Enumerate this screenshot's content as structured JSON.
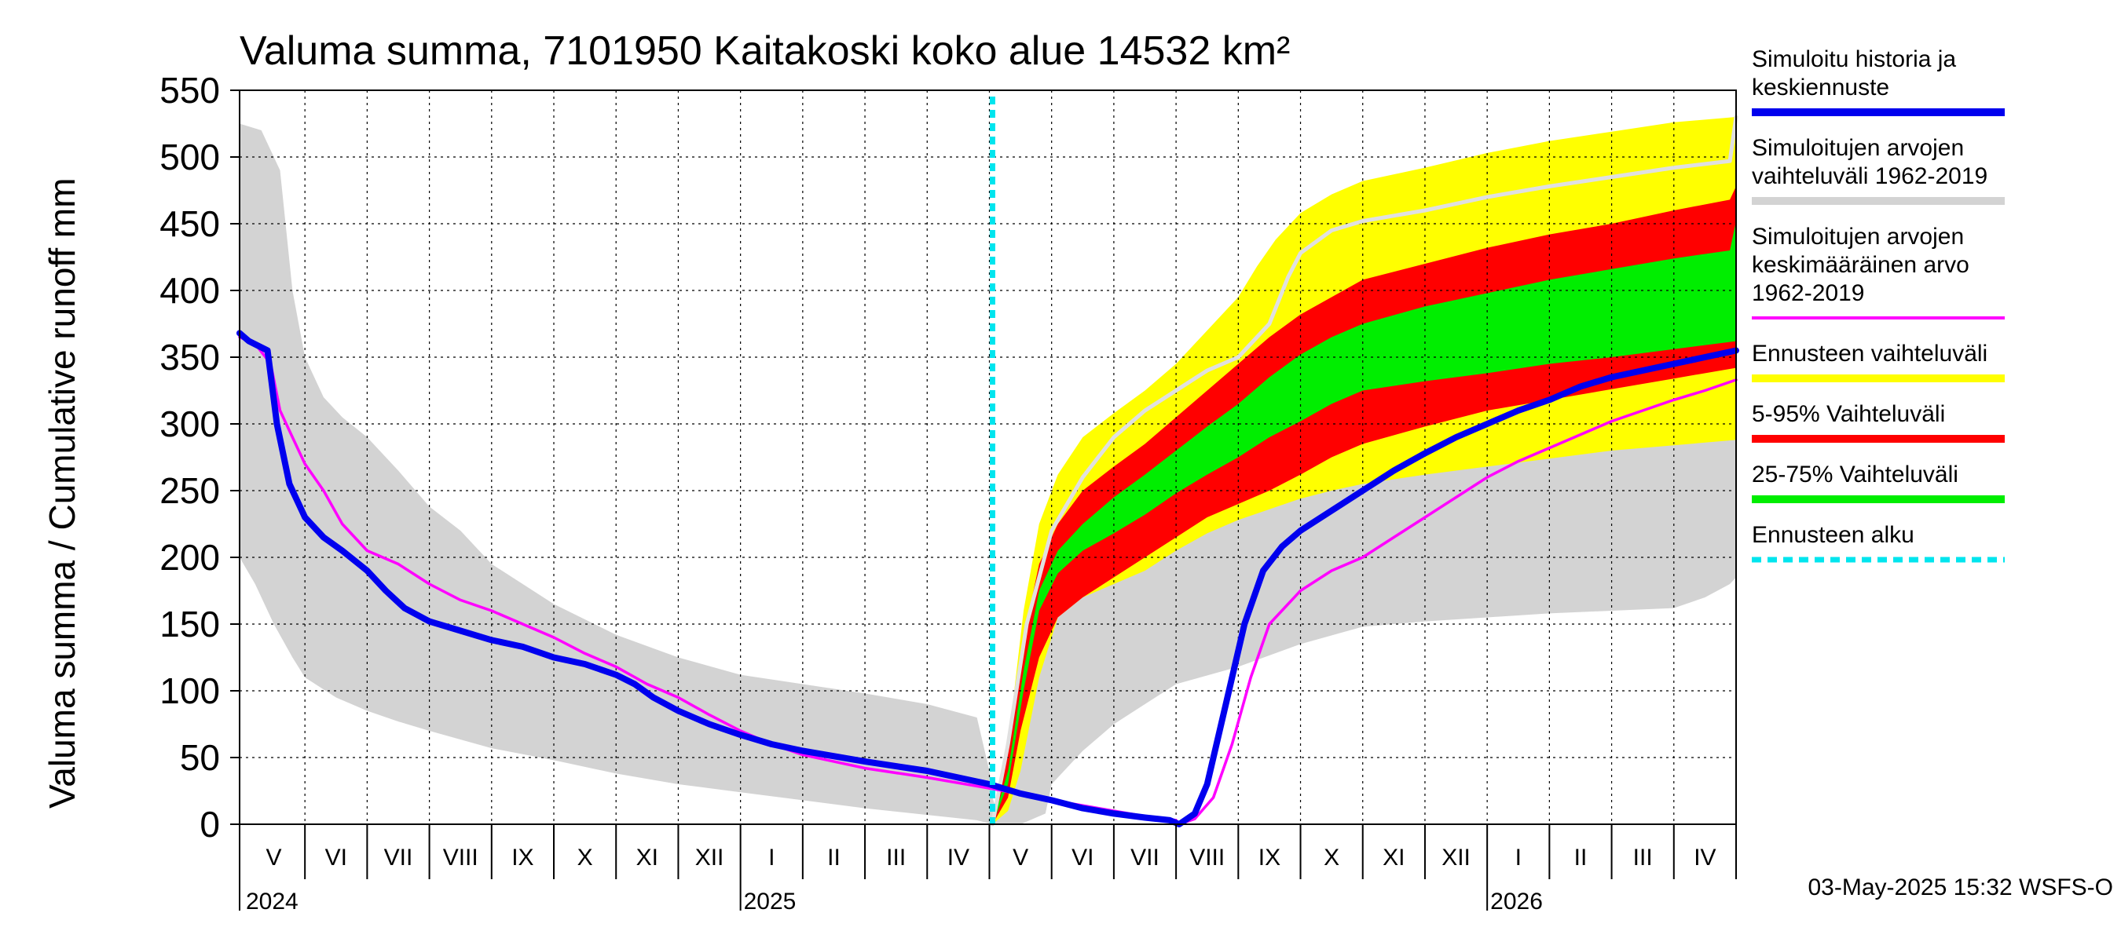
{
  "chart_data": {
    "type": "area",
    "title": "Valuma summa, 7101950 Kaitakoski koko alue 14532 km²",
    "ylabel": "Valuma summa / Cumulative runoff     mm",
    "ylim": [
      0,
      550
    ],
    "yticks": [
      0,
      50,
      100,
      150,
      200,
      250,
      300,
      350,
      400,
      450,
      500,
      550
    ],
    "x_unit": "months since 2024-04-01",
    "xlim": [
      0.95,
      25.0
    ],
    "month_labels": [
      "V",
      "VI",
      "VII",
      "VIII",
      "IX",
      "X",
      "XI",
      "XII",
      "I",
      "II",
      "III",
      "IV",
      "V",
      "VI",
      "VII",
      "VIII",
      "IX",
      "X",
      "XI",
      "XII",
      "I",
      "II",
      "III",
      "IV"
    ],
    "year_labels": [
      {
        "label": "2024",
        "month": 1
      },
      {
        "label": "2025",
        "month": 9
      },
      {
        "label": "2026",
        "month": 21
      }
    ],
    "forecast_start": 13.05,
    "timestamp": "03-May-2025 15:32 WSFS-O",
    "colors": {
      "history": "#0000ee",
      "hist_range": "#d3d3d3",
      "hist_mean": "#ff00ff",
      "fc_range": "#ffff00",
      "p5_95": "#ff0000",
      "p25_75": "#00ee00",
      "forecast_start": "#00e5ee",
      "hist_max_line": "#e0e0e0"
    },
    "legend": [
      {
        "key": "history",
        "label_lines": [
          "Simuloitu historia ja",
          "keskiennuste"
        ],
        "style": "solid"
      },
      {
        "key": "hist_range",
        "label_lines": [
          "Simuloitujen arvojen",
          "vaihteluväli 1962-2019"
        ],
        "style": "solid"
      },
      {
        "key": "hist_mean",
        "label_lines": [
          "Simuloitujen arvojen",
          "keskimääräinen arvo",
          "   1962-2019"
        ],
        "style": "thin"
      },
      {
        "key": "fc_range",
        "label_lines": [
          "Ennusteen vaihteluväli"
        ],
        "style": "solid"
      },
      {
        "key": "p5_95",
        "label_lines": [
          "5-95% Vaihteluväli"
        ],
        "style": "solid"
      },
      {
        "key": "p25_75",
        "label_lines": [
          "25-75% Vaihteluväli"
        ],
        "style": "solid"
      },
      {
        "key": "forecast_start",
        "label_lines": [
          "Ennusteen alku"
        ],
        "style": "dashed"
      }
    ],
    "series": {
      "hist_upper": [
        [
          0.95,
          525
        ],
        [
          1.3,
          520
        ],
        [
          1.6,
          490
        ],
        [
          1.8,
          400
        ],
        [
          2.0,
          350
        ],
        [
          2.3,
          320
        ],
        [
          2.6,
          305
        ],
        [
          3,
          290
        ],
        [
          3.5,
          265
        ],
        [
          4,
          238
        ],
        [
          4.5,
          220
        ],
        [
          5,
          195
        ],
        [
          6,
          165
        ],
        [
          7,
          142
        ],
        [
          8,
          125
        ],
        [
          9,
          112
        ],
        [
          10,
          105
        ],
        [
          11,
          98
        ],
        [
          12,
          90
        ],
        [
          12.8,
          80
        ],
        [
          13.0,
          40
        ],
        [
          13.05,
          20
        ],
        [
          13.15,
          5
        ],
        [
          13.4,
          60
        ],
        [
          13.7,
          130
        ],
        [
          14.1,
          200
        ],
        [
          14.5,
          245
        ],
        [
          15,
          278
        ],
        [
          15.5,
          300
        ],
        [
          16,
          318
        ],
        [
          16.5,
          338
        ],
        [
          17,
          352
        ],
        [
          17.5,
          385
        ],
        [
          17.8,
          420
        ],
        [
          18,
          440
        ],
        [
          18.5,
          452
        ],
        [
          19,
          460
        ],
        [
          19.5,
          466
        ],
        [
          20,
          470
        ],
        [
          21,
          478
        ],
        [
          22,
          484
        ],
        [
          23,
          490
        ],
        [
          24,
          497
        ],
        [
          24.9,
          502
        ],
        [
          25.0,
          530
        ]
      ],
      "hist_lower": [
        [
          0.95,
          200
        ],
        [
          1.2,
          180
        ],
        [
          1.5,
          150
        ],
        [
          1.8,
          125
        ],
        [
          2,
          110
        ],
        [
          2.5,
          95
        ],
        [
          3,
          85
        ],
        [
          3.5,
          77
        ],
        [
          4,
          70
        ],
        [
          5,
          57
        ],
        [
          6,
          48
        ],
        [
          7,
          38
        ],
        [
          8,
          30
        ],
        [
          9,
          24
        ],
        [
          10,
          18
        ],
        [
          11,
          12
        ],
        [
          12,
          7
        ],
        [
          12.8,
          3
        ],
        [
          13.05,
          0
        ],
        [
          13.5,
          0
        ],
        [
          13.9,
          8
        ],
        [
          14.0,
          30
        ],
        [
          14.5,
          55
        ],
        [
          15,
          75
        ],
        [
          16,
          105
        ],
        [
          17,
          118
        ],
        [
          18,
          135
        ],
        [
          19,
          148
        ],
        [
          20,
          152
        ],
        [
          21,
          155
        ],
        [
          22,
          158
        ],
        [
          23,
          160
        ],
        [
          24,
          162
        ],
        [
          24.5,
          170
        ],
        [
          24.9,
          180
        ],
        [
          25.0,
          185
        ]
      ],
      "hist_max_line": [
        [
          13.05,
          0
        ],
        [
          13.3,
          60
        ],
        [
          13.6,
          150
        ],
        [
          14.0,
          220
        ],
        [
          14.5,
          260
        ],
        [
          15,
          290
        ],
        [
          15.5,
          310
        ],
        [
          16,
          325
        ],
        [
          16.5,
          340
        ],
        [
          17,
          350
        ],
        [
          17.5,
          375
        ],
        [
          17.8,
          410
        ],
        [
          18,
          428
        ],
        [
          18.5,
          445
        ],
        [
          19,
          452
        ],
        [
          20,
          460
        ],
        [
          21,
          470
        ],
        [
          22,
          478
        ],
        [
          23,
          485
        ],
        [
          24,
          492
        ],
        [
          24.9,
          497
        ],
        [
          25.0,
          530
        ]
      ],
      "fc_upper": [
        [
          13.05,
          0
        ],
        [
          13.3,
          60
        ],
        [
          13.55,
          160
        ],
        [
          13.8,
          225
        ],
        [
          14.1,
          262
        ],
        [
          14.5,
          290
        ],
        [
          15,
          308
        ],
        [
          15.5,
          325
        ],
        [
          16,
          345
        ],
        [
          16.5,
          370
        ],
        [
          17,
          395
        ],
        [
          17.3,
          418
        ],
        [
          17.6,
          438
        ],
        [
          18,
          458
        ],
        [
          18.5,
          472
        ],
        [
          19,
          482
        ],
        [
          20,
          492
        ],
        [
          21,
          503
        ],
        [
          22,
          512
        ],
        [
          23,
          519
        ],
        [
          24,
          526
        ],
        [
          25.0,
          530
        ]
      ],
      "fc_lower": [
        [
          13.05,
          0
        ],
        [
          13.3,
          10
        ],
        [
          13.5,
          40
        ],
        [
          13.8,
          110
        ],
        [
          14.1,
          155
        ],
        [
          14.5,
          170
        ],
        [
          15,
          180
        ],
        [
          15.5,
          190
        ],
        [
          16,
          205
        ],
        [
          16.5,
          218
        ],
        [
          17,
          228
        ],
        [
          17.5,
          236
        ],
        [
          18,
          244
        ],
        [
          18.5,
          250
        ],
        [
          19,
          255
        ],
        [
          20,
          262
        ],
        [
          21,
          268
        ],
        [
          22,
          274
        ],
        [
          23,
          280
        ],
        [
          24,
          284
        ],
        [
          25.0,
          288
        ]
      ],
      "p95": [
        [
          13.05,
          0
        ],
        [
          13.3,
          60
        ],
        [
          13.55,
          140
        ],
        [
          13.8,
          195
        ],
        [
          14.1,
          225
        ],
        [
          14.5,
          250
        ],
        [
          15,
          268
        ],
        [
          15.5,
          285
        ],
        [
          16,
          305
        ],
        [
          16.5,
          325
        ],
        [
          17,
          345
        ],
        [
          17.5,
          365
        ],
        [
          18,
          382
        ],
        [
          18.5,
          395
        ],
        [
          19,
          408
        ],
        [
          20,
          420
        ],
        [
          21,
          432
        ],
        [
          22,
          442
        ],
        [
          23,
          450
        ],
        [
          24,
          460
        ],
        [
          24.9,
          468
        ],
        [
          25.0,
          478
        ]
      ],
      "p5": [
        [
          13.05,
          0
        ],
        [
          13.3,
          20
        ],
        [
          13.5,
          70
        ],
        [
          13.8,
          125
        ],
        [
          14.1,
          155
        ],
        [
          14.5,
          170
        ],
        [
          15,
          185
        ],
        [
          15.5,
          200
        ],
        [
          16,
          215
        ],
        [
          16.5,
          230
        ],
        [
          17,
          240
        ],
        [
          17.5,
          250
        ],
        [
          18,
          262
        ],
        [
          18.5,
          275
        ],
        [
          19,
          285
        ],
        [
          20,
          298
        ],
        [
          21,
          310
        ],
        [
          22,
          318
        ],
        [
          23,
          326
        ],
        [
          24,
          334
        ],
        [
          25.0,
          342
        ]
      ],
      "p75": [
        [
          13.05,
          0
        ],
        [
          13.3,
          40
        ],
        [
          13.55,
          115
        ],
        [
          13.8,
          175
        ],
        [
          14.1,
          205
        ],
        [
          14.5,
          225
        ],
        [
          15,
          245
        ],
        [
          15.5,
          262
        ],
        [
          16,
          280
        ],
        [
          16.5,
          298
        ],
        [
          17,
          315
        ],
        [
          17.5,
          335
        ],
        [
          18,
          352
        ],
        [
          18.5,
          365
        ],
        [
          19,
          375
        ],
        [
          20,
          388
        ],
        [
          21,
          398
        ],
        [
          22,
          408
        ],
        [
          23,
          416
        ],
        [
          24,
          424
        ],
        [
          24.9,
          430
        ],
        [
          25.0,
          452
        ]
      ],
      "p25": [
        [
          13.05,
          0
        ],
        [
          13.3,
          30
        ],
        [
          13.55,
          100
        ],
        [
          13.8,
          160
        ],
        [
          14.1,
          188
        ],
        [
          14.5,
          205
        ],
        [
          15,
          218
        ],
        [
          15.5,
          232
        ],
        [
          16,
          248
        ],
        [
          16.5,
          262
        ],
        [
          17,
          275
        ],
        [
          17.5,
          290
        ],
        [
          18,
          302
        ],
        [
          18.5,
          315
        ],
        [
          19,
          325
        ],
        [
          20,
          332
        ],
        [
          21,
          338
        ],
        [
          22,
          345
        ],
        [
          23,
          350
        ],
        [
          24,
          356
        ],
        [
          25.0,
          362
        ]
      ],
      "history": [
        [
          0.95,
          368
        ],
        [
          1.1,
          362
        ],
        [
          1.4,
          355
        ],
        [
          1.55,
          300
        ],
        [
          1.75,
          255
        ],
        [
          2.0,
          230
        ],
        [
          2.3,
          215
        ],
        [
          2.6,
          205
        ],
        [
          3,
          190
        ],
        [
          3.3,
          175
        ],
        [
          3.6,
          162
        ],
        [
          4,
          152
        ],
        [
          4.5,
          145
        ],
        [
          5,
          138
        ],
        [
          5.5,
          133
        ],
        [
          6,
          125
        ],
        [
          6.5,
          120
        ],
        [
          7,
          112
        ],
        [
          7.3,
          105
        ],
        [
          7.6,
          95
        ],
        [
          8,
          85
        ],
        [
          8.5,
          75
        ],
        [
          9,
          67
        ],
        [
          9.5,
          60
        ],
        [
          10,
          55
        ],
        [
          11,
          47
        ],
        [
          12,
          40
        ],
        [
          13,
          30
        ],
        [
          13.5,
          23
        ],
        [
          14,
          18
        ],
        [
          14.5,
          12
        ],
        [
          15,
          8
        ],
        [
          15.5,
          5
        ],
        [
          15.9,
          3
        ],
        [
          16.05,
          0
        ],
        [
          16.3,
          8
        ],
        [
          16.5,
          30
        ],
        [
          16.8,
          90
        ],
        [
          17.1,
          150
        ],
        [
          17.4,
          190
        ],
        [
          17.7,
          208
        ],
        [
          18,
          220
        ],
        [
          18.5,
          235
        ],
        [
          19,
          250
        ],
        [
          19.5,
          265
        ],
        [
          20,
          278
        ],
        [
          20.5,
          290
        ],
        [
          21,
          300
        ],
        [
          21.5,
          310
        ],
        [
          22,
          318
        ],
        [
          22.5,
          328
        ],
        [
          23,
          335
        ],
        [
          23.5,
          340
        ],
        [
          24,
          345
        ],
        [
          24.5,
          350
        ],
        [
          25.0,
          355
        ]
      ],
      "hist_mean": [
        [
          0.95,
          365
        ],
        [
          1.2,
          360
        ],
        [
          1.45,
          345
        ],
        [
          1.6,
          310
        ],
        [
          1.8,
          290
        ],
        [
          2.0,
          270
        ],
        [
          2.3,
          250
        ],
        [
          2.6,
          225
        ],
        [
          3,
          205
        ],
        [
          3.5,
          195
        ],
        [
          4,
          180
        ],
        [
          4.5,
          168
        ],
        [
          5,
          160
        ],
        [
          5.5,
          150
        ],
        [
          6,
          140
        ],
        [
          6.5,
          128
        ],
        [
          7,
          118
        ],
        [
          7.5,
          105
        ],
        [
          8,
          95
        ],
        [
          8.5,
          82
        ],
        [
          9,
          70
        ],
        [
          9.5,
          60
        ],
        [
          10,
          52
        ],
        [
          10.5,
          47
        ],
        [
          11,
          42
        ],
        [
          12,
          35
        ],
        [
          13,
          27
        ],
        [
          14,
          18
        ],
        [
          15,
          10
        ],
        [
          15.5,
          6
        ],
        [
          16,
          3
        ],
        [
          16.05,
          0
        ],
        [
          16.3,
          4
        ],
        [
          16.6,
          20
        ],
        [
          16.9,
          60
        ],
        [
          17.2,
          110
        ],
        [
          17.5,
          150
        ],
        [
          17.8,
          165
        ],
        [
          18,
          175
        ],
        [
          18.5,
          190
        ],
        [
          19,
          200
        ],
        [
          19.5,
          215
        ],
        [
          20,
          230
        ],
        [
          20.5,
          245
        ],
        [
          21,
          260
        ],
        [
          21.5,
          272
        ],
        [
          22,
          282
        ],
        [
          22.5,
          292
        ],
        [
          23,
          302
        ],
        [
          23.5,
          310
        ],
        [
          24,
          318
        ],
        [
          24.5,
          325
        ],
        [
          25.0,
          333
        ]
      ]
    }
  }
}
